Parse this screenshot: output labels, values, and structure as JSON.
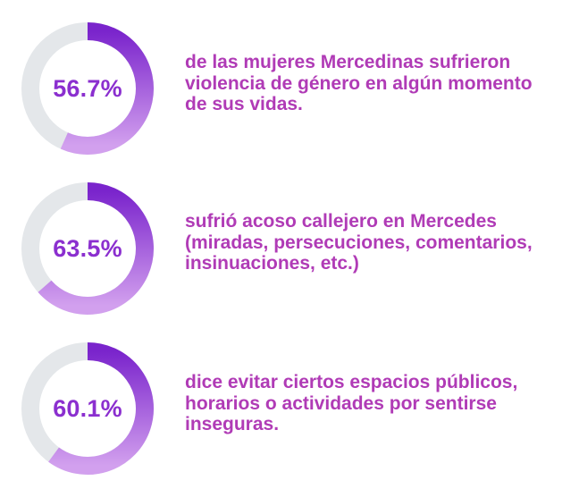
{
  "colors": {
    "track": "#e4e7ea",
    "arc_start": "#d2a0ee",
    "arc_end": "#7a24cc",
    "value_text": "#8b2fcf",
    "description_text": "#b03bb6"
  },
  "chart_data": [
    {
      "type": "donut",
      "value": 56.7,
      "max": 100,
      "label": "56.7%",
      "description": "de las mujeres Mercedinas sufrieron violencia de género en algún momento de sus vidas."
    },
    {
      "type": "donut",
      "value": 63.5,
      "max": 100,
      "label": "63.5%",
      "description": "sufrió acoso callejero en Mercedes (miradas, persecuciones, comentarios, insinuaciones, etc.)"
    },
    {
      "type": "donut",
      "value": 60.1,
      "max": 100,
      "label": "60.1%",
      "description": "dice evitar ciertos espacios públicos, horarios o actividades por sentirse inseguras."
    }
  ]
}
